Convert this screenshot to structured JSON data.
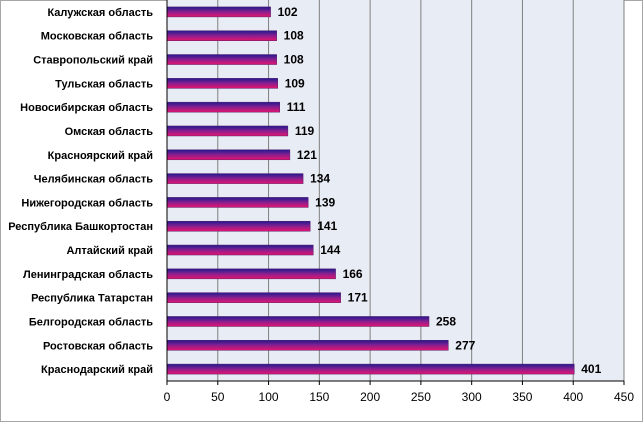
{
  "chart_data": {
    "type": "bar",
    "orientation": "horizontal",
    "categories": [
      "Калужская  область",
      "Московская  область",
      "Ставропольский  край",
      "Тульская  область",
      "Новосибирская  область",
      "Омская  область",
      "Красноярский  край",
      "Челябинская  область",
      "Нижегородская  область",
      "Республика  Башкортостан",
      "Алтайский  край",
      "Ленинградская  область",
      "Республика  Татарстан",
      "Белгородская  область",
      "Ростовская  область",
      "Краснодарский  край"
    ],
    "values": [
      102,
      108,
      108,
      109,
      111,
      119,
      121,
      134,
      139,
      141,
      144,
      166,
      171,
      258,
      277,
      401
    ],
    "xlim": [
      0,
      450
    ],
    "xticks": [
      0,
      50,
      100,
      150,
      200,
      250,
      300,
      350,
      400,
      450
    ],
    "grid": true,
    "data_labels": true,
    "colors": {
      "plot_background": "#e8ecf5",
      "gridline": "#808080",
      "bar_top": "#1f1a8f",
      "bar_mid": "#8a1f8f",
      "bar_bottom": "#e5146e"
    }
  }
}
